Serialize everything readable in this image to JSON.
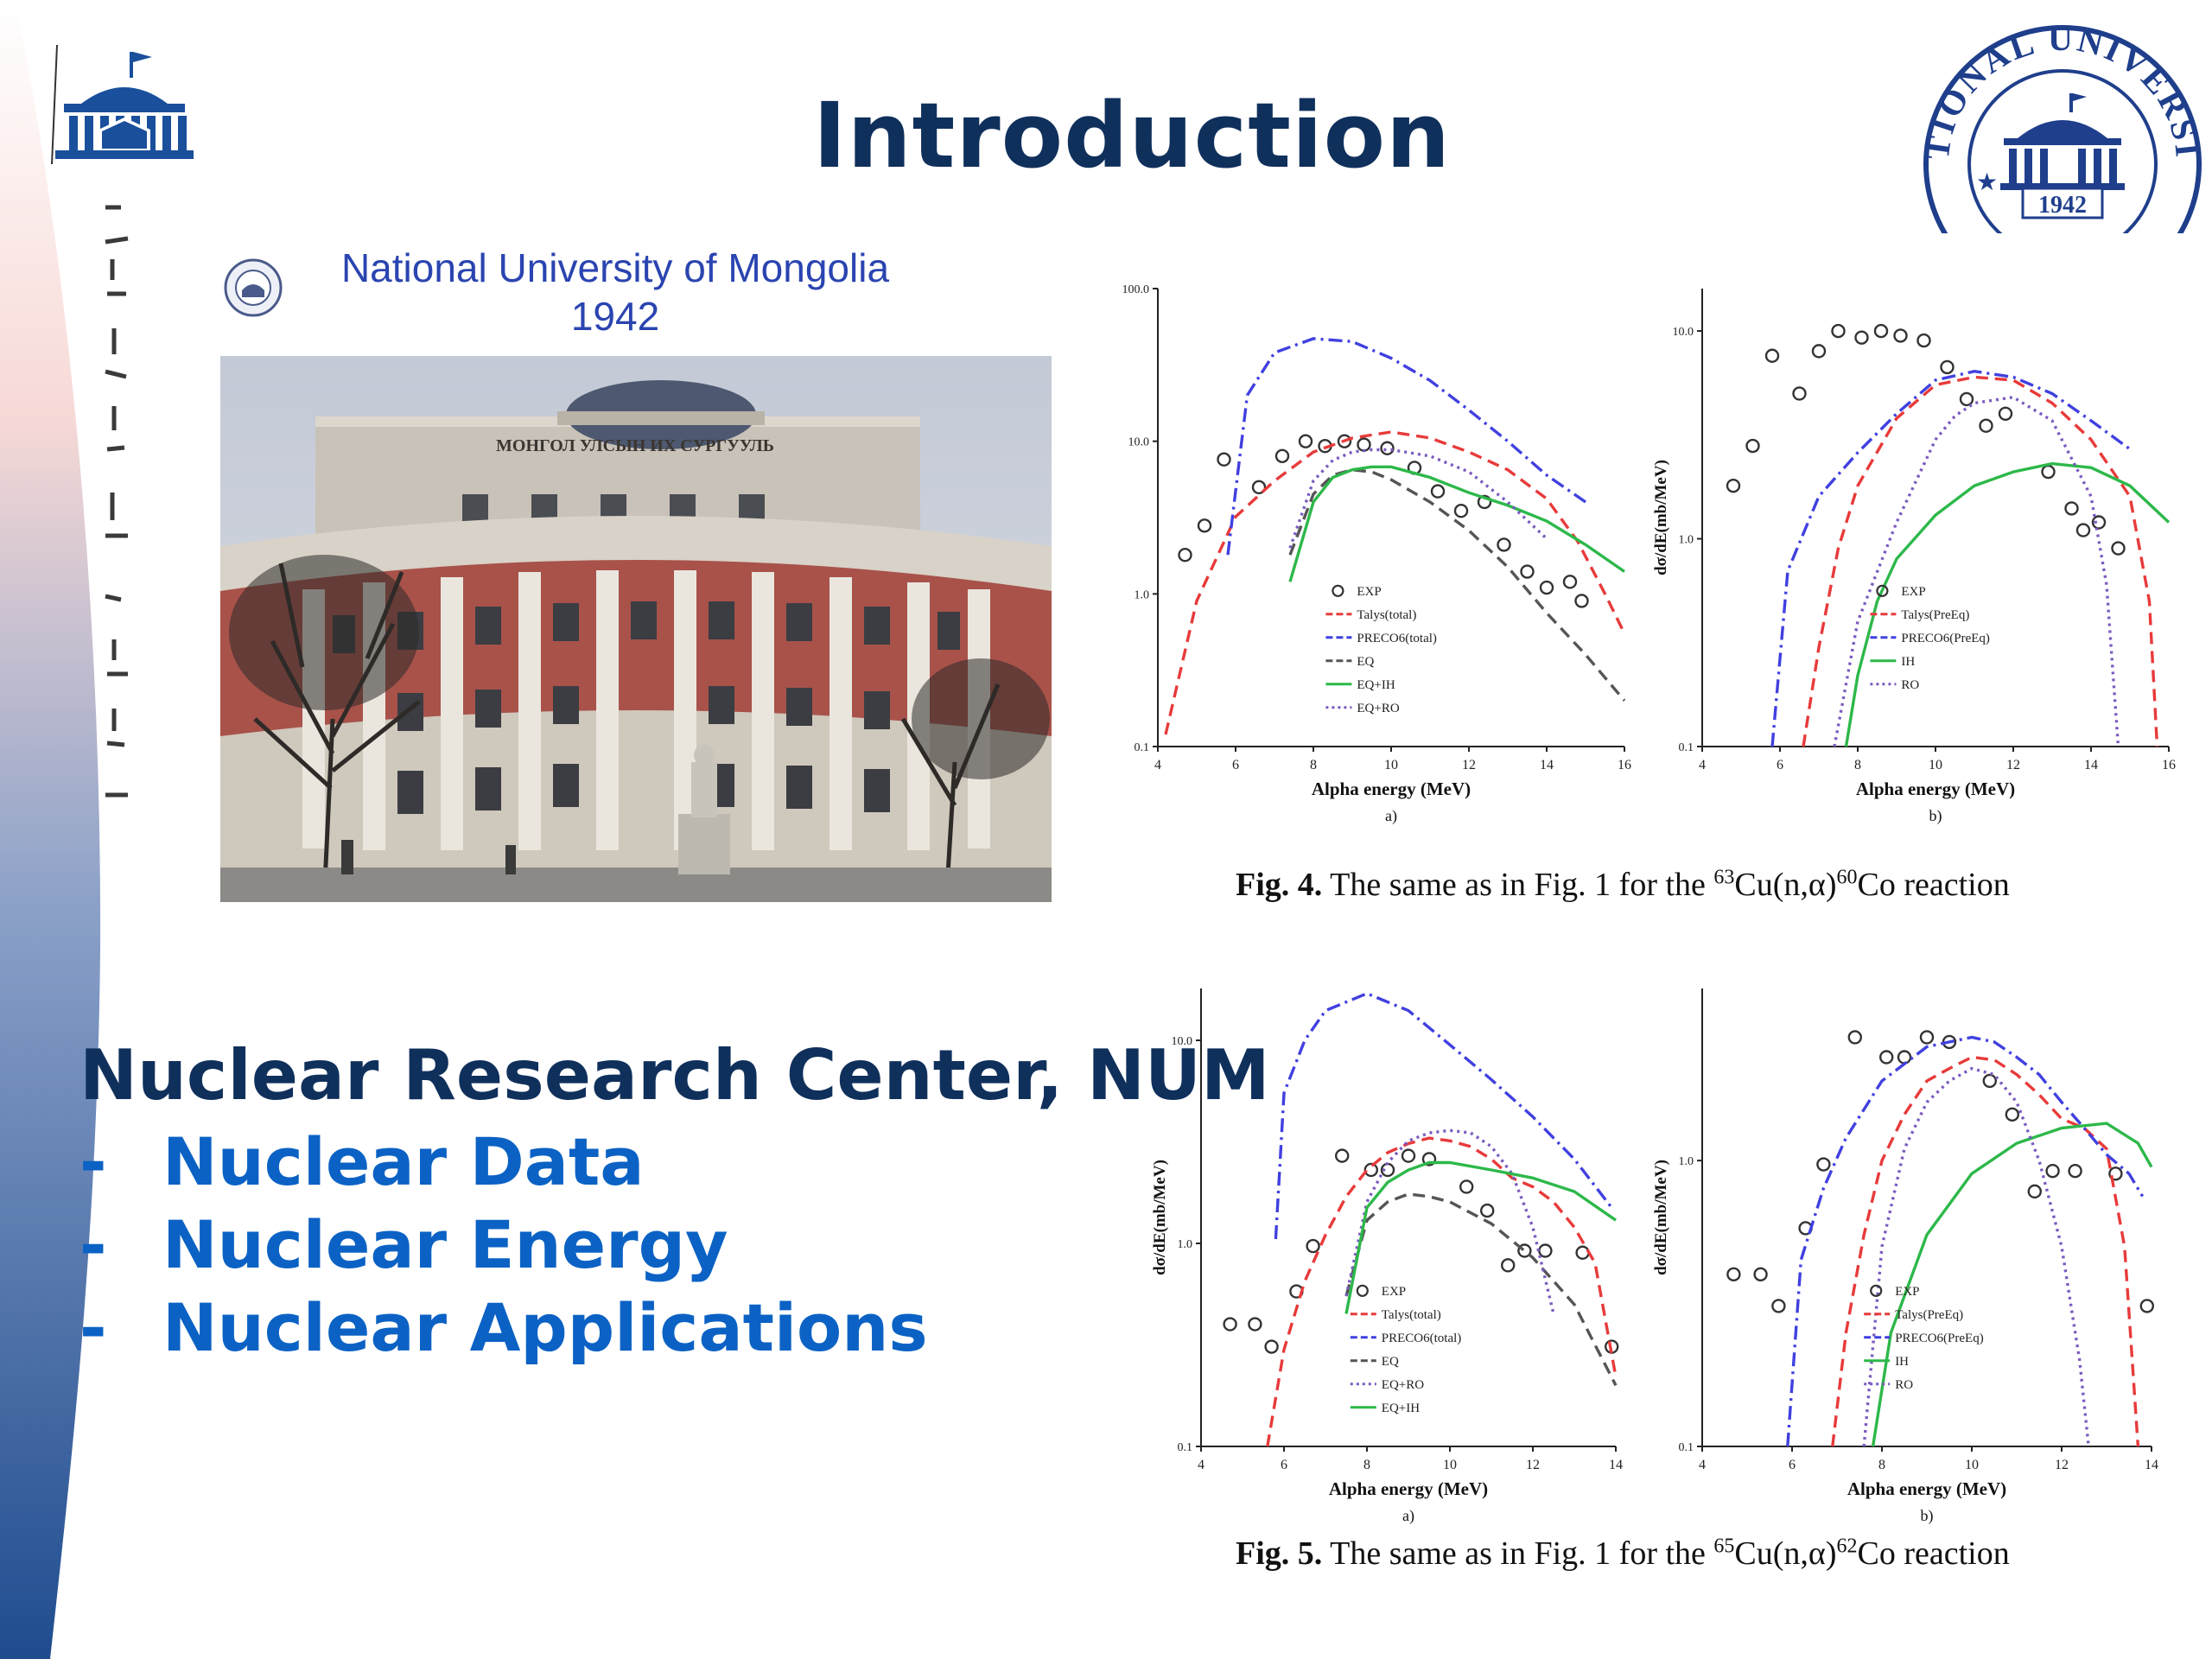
{
  "slide": {
    "title": "Introduction",
    "university_caption": {
      "name": "National University of Mongolia",
      "year": "1942"
    },
    "seal": {
      "text": "NATIONAL UNIVERSITY",
      "year": "1942"
    },
    "building_sign": "МОНГОЛ УЛСЫН ИХ СУРГУУЛЬ",
    "section_heading": "Nuclear Research Center, NUM",
    "bullets": [
      "Nuclear Data",
      "Nuclear Energy",
      "Nuclear Applications"
    ],
    "bullet_marker": "-",
    "colors": {
      "title": "#10305c",
      "bullet": "#0b62c4",
      "caption": "#2a44b0"
    }
  },
  "figures": {
    "fig4": {
      "label": "Fig. 4.",
      "text_before": "The same as in Fig. 1 for the ",
      "sup1": "63",
      "mid": "Cu(n,α)",
      "sup2": "60",
      "text_after": "Co reaction"
    },
    "fig5": {
      "label": "Fig. 5.",
      "text_before": "The same as in Fig. 1 for the ",
      "sup1": "65",
      "mid": "Cu(n,α)",
      "sup2": "62",
      "text_after": "Co reaction"
    }
  },
  "chart_data": [
    {
      "id": "fig4a",
      "type": "line",
      "panel": "a)",
      "log_y": true,
      "xlabel": "Alpha energy (MeV)",
      "ylabel": "",
      "xlim": [
        4,
        16
      ],
      "ylim": [
        0.1,
        100
      ],
      "xticks": [
        "4",
        "6",
        "8",
        "10",
        "12",
        "14",
        "16"
      ],
      "yticks": [
        "0.1",
        "1.0",
        "10.0",
        "100.0"
      ],
      "legend": [
        "EXP",
        "Talys(total)",
        "PRECO6(total)",
        "EQ",
        "EQ+IH",
        "EQ+RO"
      ],
      "legend_position": "bottom-center",
      "series": [
        {
          "name": "EXP",
          "style": "circle",
          "color": "#333333",
          "x": [
            4.7,
            5.2,
            5.7,
            6.6,
            7.2,
            7.8,
            8.3,
            8.8,
            9.3,
            9.9,
            10.6,
            11.2,
            11.8,
            12.4,
            12.9,
            13.5,
            14.0,
            14.6,
            14.9
          ],
          "y": [
            1.8,
            2.8,
            7.6,
            5.0,
            8.0,
            10.0,
            9.3,
            10.0,
            9.5,
            9.0,
            6.7,
            4.7,
            3.5,
            4.0,
            2.1,
            1.4,
            1.1,
            1.2,
            0.9
          ]
        },
        {
          "name": "Talys(total)",
          "style": "dash",
          "color": "#e83a3a",
          "x": [
            4.2,
            5,
            6,
            7,
            8,
            9,
            10,
            11,
            12,
            13,
            14,
            14.8,
            15.5,
            16
          ],
          "y": [
            0.12,
            0.9,
            3.2,
            5.5,
            8.5,
            10.5,
            11.5,
            10.5,
            8.5,
            6.5,
            4.2,
            2.2,
            1.0,
            0.55
          ]
        },
        {
          "name": "PRECO6(total)",
          "style": "dashdot",
          "color": "#4040e0",
          "x": [
            5.8,
            6.3,
            7,
            8,
            9,
            10,
            11,
            12,
            13,
            14,
            15
          ],
          "y": [
            1.8,
            20,
            38,
            47,
            45,
            35,
            25,
            16,
            10,
            6,
            4
          ]
        },
        {
          "name": "EQ",
          "style": "dash",
          "color": "#555555",
          "x": [
            7.4,
            8,
            8.5,
            9,
            9.5,
            10,
            11,
            12,
            13,
            14,
            15,
            16
          ],
          "y": [
            1.8,
            4.5,
            6.0,
            6.5,
            6.3,
            5.6,
            4.0,
            2.6,
            1.5,
            0.75,
            0.4,
            0.2
          ]
        },
        {
          "name": "EQ+IH",
          "style": "solid",
          "color": "#2db84a",
          "x": [
            7.4,
            8,
            8.5,
            9,
            9.5,
            10,
            11,
            12,
            13,
            14,
            15,
            16
          ],
          "y": [
            1.2,
            4.0,
            5.8,
            6.5,
            6.8,
            6.8,
            5.8,
            4.6,
            3.8,
            3.0,
            2.1,
            1.4
          ]
        },
        {
          "name": "EQ+RO",
          "style": "dot",
          "color": "#7a5bbf",
          "x": [
            7.4,
            8,
            8.5,
            9,
            9.5,
            10,
            11,
            12,
            13,
            14
          ],
          "y": [
            2.0,
            5.5,
            7.5,
            8.5,
            8.8,
            8.8,
            8.0,
            6.3,
            4.0,
            2.3
          ]
        }
      ]
    },
    {
      "id": "fig4b",
      "type": "line",
      "panel": "b)",
      "log_y": true,
      "xlabel": "Alpha energy (MeV)",
      "ylabel": "dσ/dE(mb/MeV)",
      "xlim": [
        4,
        16
      ],
      "ylim": [
        0.1,
        16
      ],
      "xticks": [
        "4",
        "6",
        "8",
        "10",
        "12",
        "14",
        "16"
      ],
      "yticks": [
        "0.1",
        "1.0",
        "10.0"
      ],
      "legend": [
        "EXP",
        "Talys(PreEq)",
        "PRECO6(PreEq)",
        "IH",
        "RO"
      ],
      "legend_position": "bottom-center",
      "series": [
        {
          "name": "EXP",
          "style": "circle",
          "color": "#333333",
          "x": [
            4.8,
            5.3,
            5.8,
            6.5,
            7.0,
            7.5,
            8.1,
            8.6,
            9.1,
            9.7,
            10.3,
            10.8,
            11.3,
            11.8,
            12.9,
            13.5,
            13.8,
            14.2,
            14.7
          ],
          "y": [
            1.8,
            2.8,
            7.6,
            5.0,
            8.0,
            10.0,
            9.3,
            10.0,
            9.5,
            9.0,
            6.7,
            4.7,
            3.5,
            4.0,
            2.1,
            1.4,
            1.1,
            1.2,
            0.9
          ]
        },
        {
          "name": "Talys(PreEq)",
          "style": "dash",
          "color": "#e83a3a",
          "x": [
            6.6,
            7,
            7.5,
            8,
            9,
            10,
            11,
            12,
            13,
            14,
            15,
            15.5,
            15.7
          ],
          "y": [
            0.1,
            0.3,
            0.9,
            1.8,
            3.8,
            5.5,
            6.0,
            5.8,
            4.5,
            3.0,
            1.6,
            0.5,
            0.1
          ]
        },
        {
          "name": "PRECO6(PreEq)",
          "style": "dashdot",
          "color": "#4040e0",
          "x": [
            5.8,
            6.2,
            7,
            8,
            9,
            10,
            11,
            12,
            13,
            14,
            15
          ],
          "y": [
            0.1,
            0.7,
            1.6,
            2.6,
            4.0,
            5.8,
            6.4,
            6.0,
            5.0,
            3.7,
            2.7
          ]
        },
        {
          "name": "IH",
          "style": "solid",
          "color": "#2db84a",
          "x": [
            7.7,
            8,
            8.5,
            9,
            10,
            11,
            12,
            13,
            14,
            15,
            16
          ],
          "y": [
            0.1,
            0.22,
            0.5,
            0.8,
            1.3,
            1.8,
            2.1,
            2.3,
            2.2,
            1.8,
            1.2
          ]
        },
        {
          "name": "RO",
          "style": "dot",
          "color": "#7a5bbf",
          "x": [
            7.4,
            8,
            9,
            10,
            10.5,
            11,
            12,
            13,
            14,
            14.4,
            14.7
          ],
          "y": [
            0.1,
            0.4,
            1.2,
            3.0,
            3.9,
            4.5,
            4.8,
            3.7,
            1.6,
            0.6,
            0.1
          ]
        }
      ]
    },
    {
      "id": "fig5a",
      "type": "line",
      "panel": "a)",
      "log_y": true,
      "xlabel": "Alpha energy (MeV)",
      "ylabel": "dσ/dE(mb/MeV)",
      "xlim": [
        4,
        14
      ],
      "ylim": [
        0.1,
        18
      ],
      "xticks": [
        "4",
        "6",
        "8",
        "10",
        "12",
        "14"
      ],
      "yticks": [
        "0.1",
        "1.0",
        "10.0"
      ],
      "legend": [
        "EXP",
        "Talys(total)",
        "PRECO6(total)",
        "EQ",
        "EQ+RO",
        "EQ+IH"
      ],
      "legend_position": "bottom-center",
      "series": [
        {
          "name": "EXP",
          "style": "circle",
          "color": "#333333",
          "x": [
            4.7,
            5.3,
            5.7,
            6.3,
            6.7,
            7.4,
            8.1,
            8.5,
            9.0,
            9.5,
            10.4,
            10.9,
            11.4,
            11.8,
            12.3,
            13.2,
            13.9
          ],
          "y": [
            0.4,
            0.4,
            0.31,
            0.58,
            0.97,
            2.7,
            2.3,
            2.3,
            2.7,
            2.6,
            1.9,
            1.45,
            0.78,
            0.92,
            0.92,
            0.9,
            0.31
          ]
        },
        {
          "name": "Talys(total)",
          "style": "dash",
          "color": "#e83a3a",
          "x": [
            5.6,
            6,
            6.5,
            7,
            7.5,
            8,
            8.5,
            9,
            9.5,
            10,
            10.5,
            11,
            11.5,
            12,
            12.5,
            13,
            13.5,
            14
          ],
          "y": [
            0.1,
            0.3,
            0.65,
            1.1,
            1.7,
            2.3,
            2.8,
            3.1,
            3.3,
            3.2,
            3.0,
            2.6,
            2.1,
            1.9,
            1.6,
            1.2,
            0.8,
            0.22
          ]
        },
        {
          "name": "PRECO6(total)",
          "style": "dashdot",
          "color": "#4040e0",
          "x": [
            5.8,
            6,
            6.5,
            7,
            8,
            9,
            10,
            11,
            12,
            13,
            13.9
          ],
          "y": [
            1.05,
            5.5,
            10,
            14,
            17,
            14,
            9.5,
            6.4,
            4.2,
            2.6,
            1.5
          ]
        },
        {
          "name": "EQ",
          "style": "dash",
          "color": "#555555",
          "x": [
            7.5,
            8,
            8.5,
            9,
            9.5,
            10,
            11,
            12,
            13,
            14
          ],
          "y": [
            0.55,
            1.3,
            1.6,
            1.75,
            1.7,
            1.6,
            1.25,
            0.85,
            0.5,
            0.2
          ]
        },
        {
          "name": "EQ+RO",
          "style": "dot",
          "color": "#7a5bbf",
          "x": [
            7.5,
            8,
            8.5,
            9,
            9.5,
            10,
            10.5,
            11,
            11.5,
            12,
            12.5
          ],
          "y": [
            0.55,
            1.6,
            2.5,
            3.2,
            3.5,
            3.6,
            3.5,
            3.0,
            2.2,
            1.2,
            0.45
          ]
        },
        {
          "name": "EQ+IH",
          "style": "solid",
          "color": "#2db84a",
          "x": [
            7.5,
            8,
            8.5,
            9,
            9.5,
            10,
            11,
            12,
            13,
            14
          ],
          "y": [
            0.45,
            1.5,
            2.0,
            2.3,
            2.5,
            2.5,
            2.3,
            2.1,
            1.8,
            1.3
          ]
        }
      ]
    },
    {
      "id": "fig5b",
      "type": "line",
      "panel": "b)",
      "log_y": true,
      "xlabel": "Alpha energy (MeV)",
      "ylabel": "dσ/dE(mb/MeV)",
      "xlim": [
        4,
        14
      ],
      "ylim": [
        0.1,
        4
      ],
      "xticks": [
        "4",
        "6",
        "8",
        "10",
        "12",
        "14"
      ],
      "yticks": [
        "0.1",
        "1.0"
      ],
      "legend": [
        "EXP",
        "Talys(PreEq)",
        "PRECO6(PreEq)",
        "IH",
        "RO"
      ],
      "legend_position": "bottom-center",
      "series": [
        {
          "name": "EXP",
          "style": "circle",
          "color": "#333333",
          "x": [
            4.7,
            5.3,
            5.7,
            6.3,
            6.7,
            7.4,
            8.1,
            8.5,
            9.0,
            9.5,
            10.4,
            10.9,
            11.4,
            11.8,
            12.3,
            13.2,
            13.9
          ],
          "y": [
            0.4,
            0.4,
            0.31,
            0.58,
            0.97,
            2.7,
            2.3,
            2.3,
            2.7,
            2.6,
            1.9,
            1.45,
            0.78,
            0.92,
            0.92,
            0.9,
            0.31
          ]
        },
        {
          "name": "Talys(PreEq)",
          "style": "dash",
          "color": "#e83a3a",
          "x": [
            6.9,
            7.2,
            7.6,
            8,
            8.5,
            9,
            9.5,
            10,
            10.5,
            11,
            11.5,
            12,
            12.5,
            13,
            13.4,
            13.7
          ],
          "y": [
            0.1,
            0.25,
            0.55,
            1.0,
            1.45,
            1.9,
            2.1,
            2.3,
            2.25,
            2.0,
            1.7,
            1.4,
            1.3,
            1.1,
            0.5,
            0.1
          ]
        },
        {
          "name": "PRECO6(PreEq)",
          "style": "dashdot",
          "color": "#4040e0",
          "x": [
            5.9,
            6.2,
            6.7,
            7.2,
            8,
            9,
            9.5,
            10,
            10.5,
            11,
            11.5,
            12,
            12.5,
            13,
            13.5,
            13.8
          ],
          "y": [
            0.1,
            0.45,
            0.8,
            1.2,
            1.9,
            2.5,
            2.6,
            2.7,
            2.6,
            2.3,
            2.0,
            1.6,
            1.3,
            1.05,
            0.9,
            0.75
          ]
        },
        {
          "name": "IH",
          "style": "solid",
          "color": "#2db84a",
          "x": [
            7.8,
            8.2,
            9,
            10,
            11,
            12,
            13,
            13.7,
            14
          ],
          "y": [
            0.1,
            0.25,
            0.55,
            0.9,
            1.15,
            1.3,
            1.35,
            1.15,
            0.95
          ]
        },
        {
          "name": "RO",
          "style": "dot",
          "color": "#7a5bbf",
          "x": [
            7.6,
            8,
            8.5,
            9,
            9.5,
            10,
            10.5,
            11,
            11.5,
            12,
            12.4,
            12.6
          ],
          "y": [
            0.1,
            0.5,
            1.1,
            1.6,
            1.9,
            2.1,
            2.0,
            1.6,
            1.0,
            0.5,
            0.2,
            0.1
          ]
        }
      ]
    }
  ]
}
